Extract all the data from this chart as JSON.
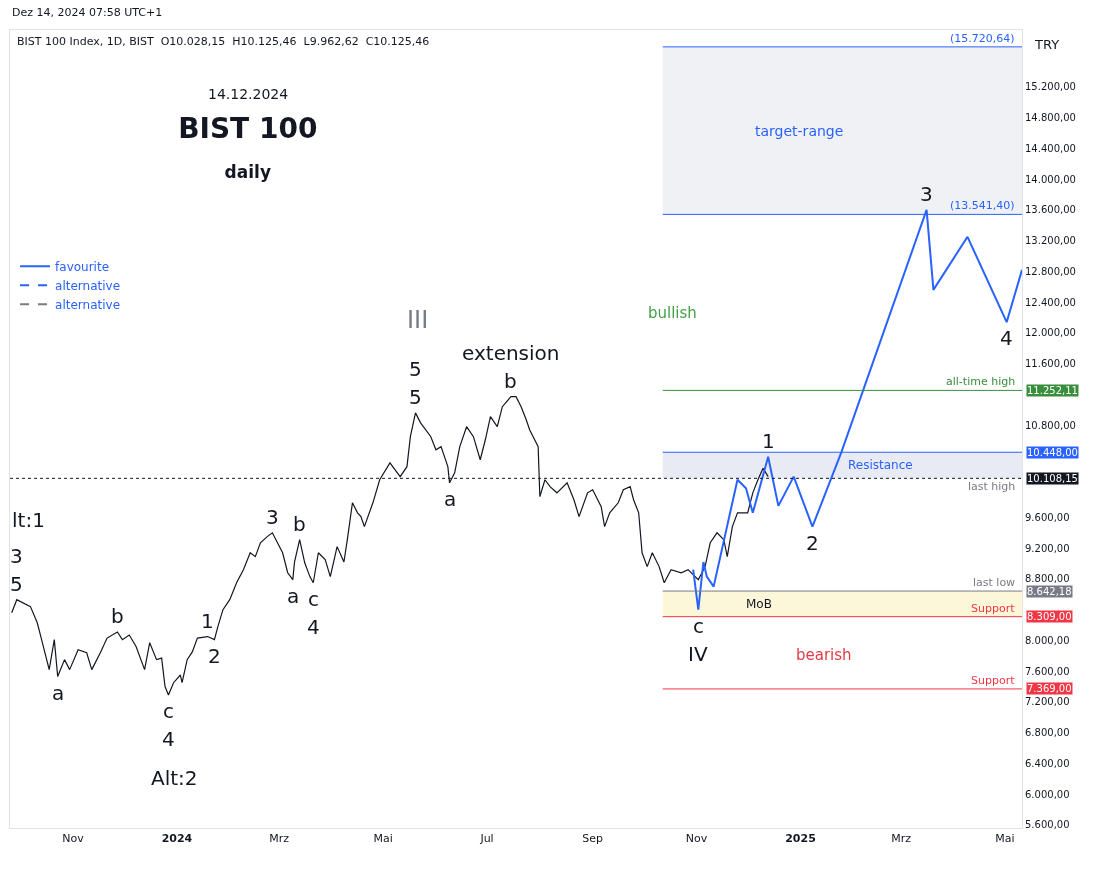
{
  "chart_data": {
    "type": "line",
    "title": "BIST 100",
    "subtitle": "daily",
    "annotations": [
      "Dez 14, 2024 07:58 UTC+1",
      "BIST 100 Index, 1D, BIST  O10.028,15  H10.125,46  L9.962,62  C10.125,46",
      "14.12.2024",
      "TRY",
      "bullish",
      "bearish",
      "lt:1",
      "Alt:2",
      "III",
      {
        "text": "3",
        "x": "2023-09-29",
        "y": 8530
      },
      {
        "text": "5",
        "x": "2023-09-29",
        "y": 8530
      },
      {
        "text": "a",
        "x": "2023-10-23",
        "y": 7530
      },
      {
        "text": "b",
        "x": "2023-11-27",
        "y": 8110
      },
      {
        "text": "c",
        "x": "2023-12-27",
        "y": 7290
      },
      {
        "text": "4",
        "x": "2023-12-27",
        "y": 7290
      },
      {
        "text": "1",
        "x": "2024-01-19",
        "y": 8050
      },
      {
        "text": "2",
        "x": "2024-01-23",
        "y": 8010
      },
      {
        "text": "3",
        "x": "2024-02-26",
        "y": 9400
      },
      {
        "text": "b",
        "x": "2024-03-13",
        "y": 9310
      },
      {
        "text": "a",
        "x": "2024-03-09",
        "y": 8790
      },
      {
        "text": "c",
        "x": "2024-03-21",
        "y": 8750
      },
      {
        "text": "4",
        "x": "2024-03-21",
        "y": 8750
      },
      {
        "text": "5",
        "x": "2024-05-20",
        "y": 10960
      },
      {
        "text": "5",
        "x": "2024-05-20",
        "y": 10960
      },
      {
        "text": "extension",
        "x": "2024-07-15",
        "y": 11170
      },
      {
        "text": "b",
        "x": "2024-07-15",
        "y": 11170
      },
      {
        "text": "a",
        "x": "2024-06-09",
        "y": 10050
      },
      {
        "text": "1",
        "x": "2024-12-13",
        "y": 10390
      },
      {
        "text": "2",
        "x": "2025-01-08",
        "y": 9480
      },
      {
        "text": "3",
        "x": "2025-03-16",
        "y": 13600
      },
      {
        "text": "4",
        "x": "2025-05-02",
        "y": 12140
      },
      {
        "text": "c",
        "x": "2024-11-02",
        "y": 8400
      },
      {
        "text": "IV",
        "x": "2024-11-02",
        "y": 8400
      },
      {
        "text": "11.252,11",
        "x": "2025-05-11",
        "y": 11252.11
      },
      {
        "text": "10.448,00",
        "x": "2025-05-11",
        "y": 10448
      },
      {
        "text": "10.108,15",
        "x": "2025-05-11",
        "y": 10108.15
      },
      {
        "text": "8.642,18",
        "x": "2025-05-11",
        "y": 8642.18
      },
      {
        "text": "8.309,00",
        "x": "2025-05-11",
        "y": 8309
      },
      {
        "text": "7.369,00",
        "x": "2025-05-11",
        "y": 7369
      }
    ],
    "series": [
      {
        "color": "#131722",
        "x": [
          "2023-09-26",
          "2023-09-29",
          "2023-10-07",
          "2023-10-11",
          "2023-10-14",
          "2023-10-18",
          "2023-10-21",
          "2023-10-23",
          "2023-10-27",
          "2023-10-30",
          "2023-11-04",
          "2023-11-09",
          "2023-11-12",
          "2023-11-17",
          "2023-11-21",
          "2023-11-27",
          "2023-11-30",
          "2023-12-04",
          "2023-12-08",
          "2023-12-13",
          "2023-12-16",
          "2023-12-20",
          "2023-12-23",
          "2023-12-25",
          "2023-12-27",
          "2023-12-30",
          "2024-01-03",
          "2024-01-04",
          "2024-01-07",
          "2024-01-10",
          "2024-01-13",
          "2024-01-19",
          "2024-01-23",
          "2024-01-25",
          "2024-01-28",
          "2024-02-01",
          "2024-02-05",
          "2024-02-09",
          "2024-02-13",
          "2024-02-16",
          "2024-02-19",
          "2024-02-23",
          "2024-02-26",
          "2024-02-29",
          "2024-03-03",
          "2024-03-06",
          "2024-03-09",
          "2024-03-10",
          "2024-03-13",
          "2024-03-16",
          "2024-03-19",
          "2024-03-21",
          "2024-03-24",
          "2024-03-28",
          "2024-03-31",
          "2024-04-04",
          "2024-04-08",
          "2024-04-10",
          "2024-04-13",
          "2024-04-16",
          "2024-04-18",
          "2024-04-20",
          "2024-04-25",
          "2024-04-29",
          "2024-05-05",
          "2024-05-11",
          "2024-05-15",
          "2024-05-17",
          "2024-05-20",
          "2024-05-23",
          "2024-05-29",
          "2024-06-01",
          "2024-06-04",
          "2024-06-08",
          "2024-06-09",
          "2024-06-12",
          "2024-06-15",
          "2024-06-19",
          "2024-06-23",
          "2024-06-27",
          "2024-06-30",
          "2024-07-03",
          "2024-07-07",
          "2024-07-10",
          "2024-07-15",
          "2024-07-18",
          "2024-07-21",
          "2024-07-24",
          "2024-07-26",
          "2024-07-31",
          "2024-08-01",
          "2024-08-04",
          "2024-08-07",
          "2024-08-11",
          "2024-08-17",
          "2024-08-21",
          "2024-08-24",
          "2024-08-29",
          "2024-09-01",
          "2024-09-06",
          "2024-09-08",
          "2024-09-11",
          "2024-09-16",
          "2024-09-19",
          "2024-09-23",
          "2024-09-25",
          "2024-09-28",
          "2024-09-30",
          "2024-10-03",
          "2024-10-06",
          "2024-10-10",
          "2024-10-13",
          "2024-10-17",
          "2024-10-23",
          "2024-10-27",
          "2024-11-02",
          "2024-11-06",
          "2024-11-09",
          "2024-11-13",
          "2024-11-17",
          "2024-11-19",
          "2024-11-22",
          "2024-11-25",
          "2024-12-01",
          "2024-12-04",
          "2024-12-07",
          "2024-12-10",
          "2024-12-13"
        ],
        "values": [
          8360,
          8530,
          8440,
          8230,
          7970,
          7620,
          8010,
          7530,
          7750,
          7620,
          7880,
          7840,
          7620,
          7840,
          8030,
          8110,
          8010,
          8070,
          7920,
          7620,
          7970,
          7750,
          7770,
          7400,
          7290,
          7450,
          7550,
          7450,
          7750,
          7850,
          8030,
          8050,
          8010,
          8180,
          8400,
          8530,
          8750,
          8920,
          9140,
          9090,
          9270,
          9350,
          9400,
          9270,
          9140,
          8880,
          8790,
          9020,
          9310,
          9010,
          8830,
          8750,
          9140,
          9050,
          8830,
          9220,
          9020,
          9310,
          9790,
          9660,
          9610,
          9480,
          9790,
          10090,
          10310,
          10130,
          10260,
          10650,
          10960,
          10830,
          10650,
          10480,
          10520,
          10260,
          10050,
          10180,
          10520,
          10780,
          10650,
          10350,
          10610,
          10910,
          10780,
          11040,
          11170,
          11170,
          11040,
          10870,
          10740,
          10520,
          9870,
          10090,
          10000,
          9920,
          10050,
          9830,
          9610,
          9920,
          9960,
          9740,
          9480,
          9660,
          9790,
          9960,
          10000,
          9830,
          9660,
          9140,
          8960,
          9140,
          8960,
          8750,
          8920,
          8880,
          8920,
          8790,
          8960,
          9270,
          9400,
          9310,
          9090,
          9480,
          9660,
          9660,
          9920,
          10090,
          10240,
          10130
        ]
      },
      {
        "name": "favourite",
        "color": "#2962ff",
        "line_style": "solid",
        "x": [
          "2024-10-30",
          "2024-11-02",
          "2024-11-05",
          "2024-11-07",
          "2024-11-11",
          "2024-11-25",
          "2024-11-30",
          "2024-12-04",
          "2024-12-13",
          "2024-12-19",
          "2024-12-28",
          "2025-01-08",
          "2025-01-25",
          "2025-03-16",
          "2025-03-20",
          "2025-04-09",
          "2025-05-02",
          "2025-05-11"
        ],
        "values": [
          8920,
          8400,
          9020,
          8830,
          8700,
          10090,
          9980,
          9660,
          10390,
          9750,
          10130,
          9480,
          10450,
          13600,
          12560,
          13250,
          12140,
          12820
        ]
      },
      {
        "name": "alternative",
        "color": "#2962ff",
        "line_style": "dashed",
        "values": [
          null
        ]
      },
      {
        "name": "alternative",
        "color": "#787b86",
        "line_style": "dashed",
        "values": [
          null
        ]
      }
    ],
    "ref_lines": [
      {
        "axis": "y",
        "value": 15720.64,
        "label": "(15.720,64)",
        "color": "#2962ff"
      },
      {
        "axis": "y",
        "value": 13541.4,
        "label": "(13.541,40)",
        "color": "#2962ff"
      },
      {
        "axis": "y",
        "value": 11252.11,
        "label": "all-time high",
        "color": "#388e3c"
      },
      {
        "axis": "y",
        "value": 10448,
        "label": null,
        "color": "#2962ff"
      },
      {
        "axis": "y",
        "value": 10108.15,
        "label": "last high",
        "color": "#131722",
        "line_style": "dotted"
      },
      {
        "axis": "y",
        "value": 8642.18,
        "label": "last low",
        "color": "#787b86"
      },
      {
        "axis": "y",
        "value": 8309,
        "label": "Support",
        "color": "#f23645"
      },
      {
        "axis": "y",
        "value": 7369,
        "label": "Support",
        "color": "#f23645"
      }
    ],
    "bands": [
      {
        "axis": "y",
        "from": 13541.4,
        "to": 15720.64,
        "label": "target-range",
        "color": "#f0f1f5"
      },
      {
        "axis": "y",
        "from": 10108.15,
        "to": 10448,
        "label": "Resistance",
        "color": "#e8ebf3"
      },
      {
        "axis": "y",
        "from": 8309,
        "to": 8642.18,
        "label": "MoB",
        "color": "#fdf7d9"
      }
    ],
    "xlim": [
      "2023-09-25",
      "2025-05-11"
    ],
    "xticks": [
      {
        "value": "2023-11-01",
        "label": "Nov"
      },
      {
        "value": "2024-01-01",
        "label": "2024"
      },
      {
        "value": "2024-03-01",
        "label": "Mrz"
      },
      {
        "value": "2024-05-01",
        "label": "Mai"
      },
      {
        "value": "2024-07-01",
        "label": "Jul"
      },
      {
        "value": "2024-09-01",
        "label": "Sep"
      },
      {
        "value": "2024-11-01",
        "label": "Nov"
      },
      {
        "value": "2025-01-01",
        "label": "2025"
      },
      {
        "value": "2025-03-01",
        "label": "Mrz"
      },
      {
        "value": "2025-05-01",
        "label": "Mai"
      }
    ],
    "ylim": [
      5560,
      15940
    ],
    "yticks": [
      {
        "value": 5600,
        "label": "5.600,00"
      },
      {
        "value": 6000,
        "label": "6.000,00"
      },
      {
        "value": 6400,
        "label": "6.400,00"
      },
      {
        "value": 6800,
        "label": "6.800,00"
      },
      {
        "value": 7200,
        "label": "7.200,00"
      },
      {
        "value": 7600,
        "label": "7.600,00"
      },
      {
        "value": 8000,
        "label": "8.000,00"
      },
      {
        "value": 8800,
        "label": "8.800,00"
      },
      {
        "value": 9200,
        "label": "9.200,00"
      },
      {
        "value": 9600,
        "label": "9.600,00"
      },
      {
        "value": 10800,
        "label": "10.800,00"
      },
      {
        "value": 11600,
        "label": "11.600,00"
      },
      {
        "value": 12000,
        "label": "12.000,00"
      },
      {
        "value": 12400,
        "label": "12.400,00"
      },
      {
        "value": 12800,
        "label": "12.800,00"
      },
      {
        "value": 13200,
        "label": "13.200,00"
      },
      {
        "value": 13600,
        "label": "13.600,00"
      },
      {
        "value": 14000,
        "label": "14.000,00"
      },
      {
        "value": 14400,
        "label": "14.400,00"
      },
      {
        "value": 14800,
        "label": "14.800,00"
      },
      {
        "value": 15200,
        "label": "15.200,00"
      }
    ],
    "legend": "left",
    "marker": "none",
    "line_style": "solid"
  }
}
